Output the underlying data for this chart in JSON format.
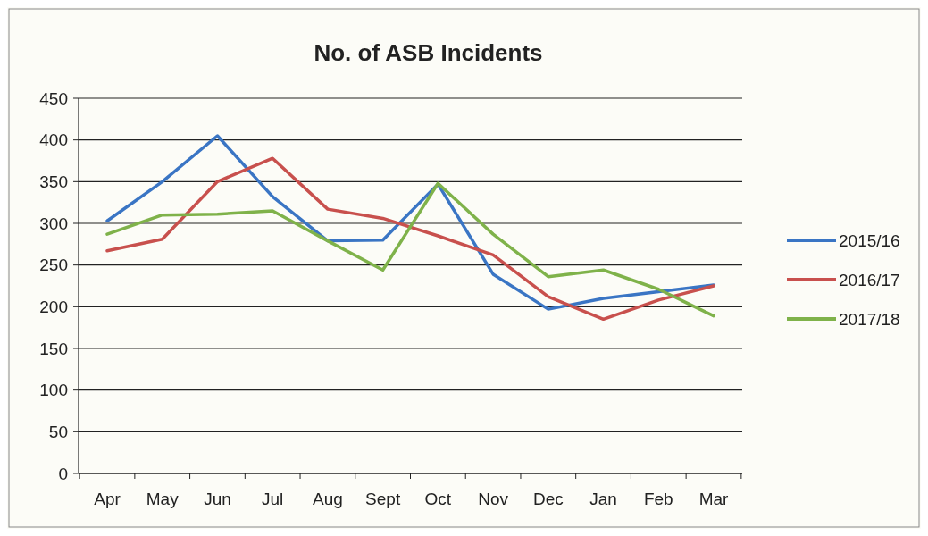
{
  "chart_data": {
    "type": "line",
    "title": "No. of ASB Incidents",
    "categories": [
      "Apr",
      "May",
      "Jun",
      "Jul",
      "Aug",
      "Sept",
      "Oct",
      "Nov",
      "Dec",
      "Jan",
      "Feb",
      "Mar"
    ],
    "series": [
      {
        "name": "2015/16",
        "color": "#3a75c4",
        "values": [
          303,
          350,
          405,
          332,
          279,
          280,
          347,
          239,
          197,
          210,
          218,
          226
        ]
      },
      {
        "name": "2016/17",
        "color": "#c8504d",
        "values": [
          267,
          281,
          350,
          378,
          317,
          306,
          285,
          262,
          212,
          185,
          208,
          225
        ]
      },
      {
        "name": "2017/18",
        "color": "#7fb24a",
        "values": [
          287,
          310,
          311,
          315,
          279,
          244,
          348,
          287,
          236,
          244,
          221,
          189
        ]
      }
    ],
    "ylim": [
      0,
      450
    ],
    "yticks": [
      0,
      50,
      100,
      150,
      200,
      250,
      300,
      350,
      400,
      450
    ],
    "grid": "y",
    "legend": "right",
    "marker": "none",
    "line_style": "solid"
  }
}
